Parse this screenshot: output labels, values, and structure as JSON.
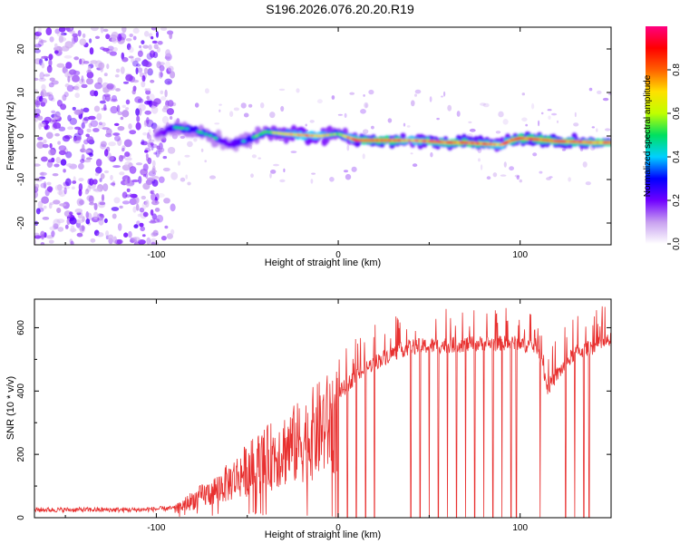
{
  "figure_title": "S196.2026.076.20.20.R19",
  "colors": {
    "snr_line": "#e8302f",
    "axes": "#000000"
  },
  "chart_data": [
    {
      "type": "heatmap",
      "name": "spectrogram",
      "xlabel": "Height of straight line (km)",
      "ylabel": "Frequency (Hz)",
      "xlim": [
        -167,
        150
      ],
      "ylim": [
        -25,
        25
      ],
      "xticks": [
        -100,
        0,
        100
      ],
      "xtick_labels": [
        "-100",
        "0",
        "100"
      ],
      "yticks": [
        -20,
        -10,
        0,
        10,
        20
      ],
      "ytick_labels": [
        "-20",
        "-10",
        "0",
        "10",
        "20"
      ],
      "noise_region_x": [
        -167,
        -90
      ],
      "signal_ridge": {
        "x": [
          -100,
          -90,
          -80,
          -70,
          -60,
          -50,
          -40,
          -30,
          -20,
          -10,
          0,
          10,
          20,
          30,
          40,
          50,
          60,
          70,
          80,
          90,
          95,
          100,
          110,
          120,
          130,
          140,
          150
        ],
        "freq": [
          0,
          2,
          1.5,
          0,
          -2,
          -1,
          1,
          0.5,
          0.2,
          0,
          0.5,
          -1,
          -1,
          -1,
          -1,
          -1.2,
          -1.5,
          -1.5,
          -1.8,
          -2,
          -1,
          -0.5,
          -0.8,
          -1.2,
          -1.3,
          -1.5,
          -1.5
        ],
        "amplitude": [
          0.3,
          0.5,
          0.5,
          0.5,
          0.4,
          0.5,
          0.6,
          0.7,
          0.8,
          0.8,
          0.6,
          0.9,
          0.95,
          0.95,
          0.8,
          0.9,
          0.9,
          0.95,
          0.9,
          0.8,
          0.9,
          0.95,
          0.95,
          0.95,
          0.9,
          0.9,
          0.9
        ]
      },
      "colorbar": {
        "label": "Normalized spectral amplitude",
        "range": [
          0,
          1
        ],
        "ticks": [
          0,
          0.2,
          0.4,
          0.6,
          0.8
        ],
        "tick_labels": [
          "0.0",
          "0.2",
          "0.4",
          "0.6",
          "0.8"
        ],
        "colormap_stops": [
          "#ffffff",
          "#c8a0f0",
          "#7000ff",
          "#0000ff",
          "#00d0ff",
          "#00e060",
          "#c0ff00",
          "#ffe000",
          "#ff6000",
          "#ff0000",
          "#ff0080"
        ]
      }
    },
    {
      "type": "line",
      "name": "snr",
      "xlabel": "Height of straight line (km)",
      "ylabel": "SNR (10 * v/v)",
      "xlim": [
        -167,
        150
      ],
      "ylim": [
        0,
        690
      ],
      "xticks": [
        -100,
        0,
        100
      ],
      "xtick_labels": [
        "-100",
        "0",
        "100"
      ],
      "yticks": [
        0,
        200,
        400,
        600
      ],
      "ytick_labels": [
        "0",
        "200",
        "400",
        "600"
      ],
      "envelope": {
        "x": [
          -167,
          -140,
          -110,
          -90,
          -85,
          -80,
          -70,
          -60,
          -50,
          -40,
          -30,
          -20,
          -10,
          0,
          10,
          20,
          30,
          40,
          60,
          80,
          100,
          110,
          115,
          120,
          130,
          140,
          150
        ],
        "y": [
          25,
          25,
          25,
          30,
          50,
          70,
          100,
          140,
          190,
          230,
          270,
          300,
          350,
          390,
          450,
          490,
          520,
          540,
          545,
          550,
          550,
          540,
          410,
          450,
          520,
          540,
          560
        ]
      },
      "dropouts_x": [
        0,
        5,
        10,
        15,
        20,
        40,
        45,
        50,
        55,
        60,
        65,
        70,
        75,
        80,
        85,
        90,
        95,
        98,
        111,
        125,
        130,
        135,
        138
      ]
    }
  ]
}
